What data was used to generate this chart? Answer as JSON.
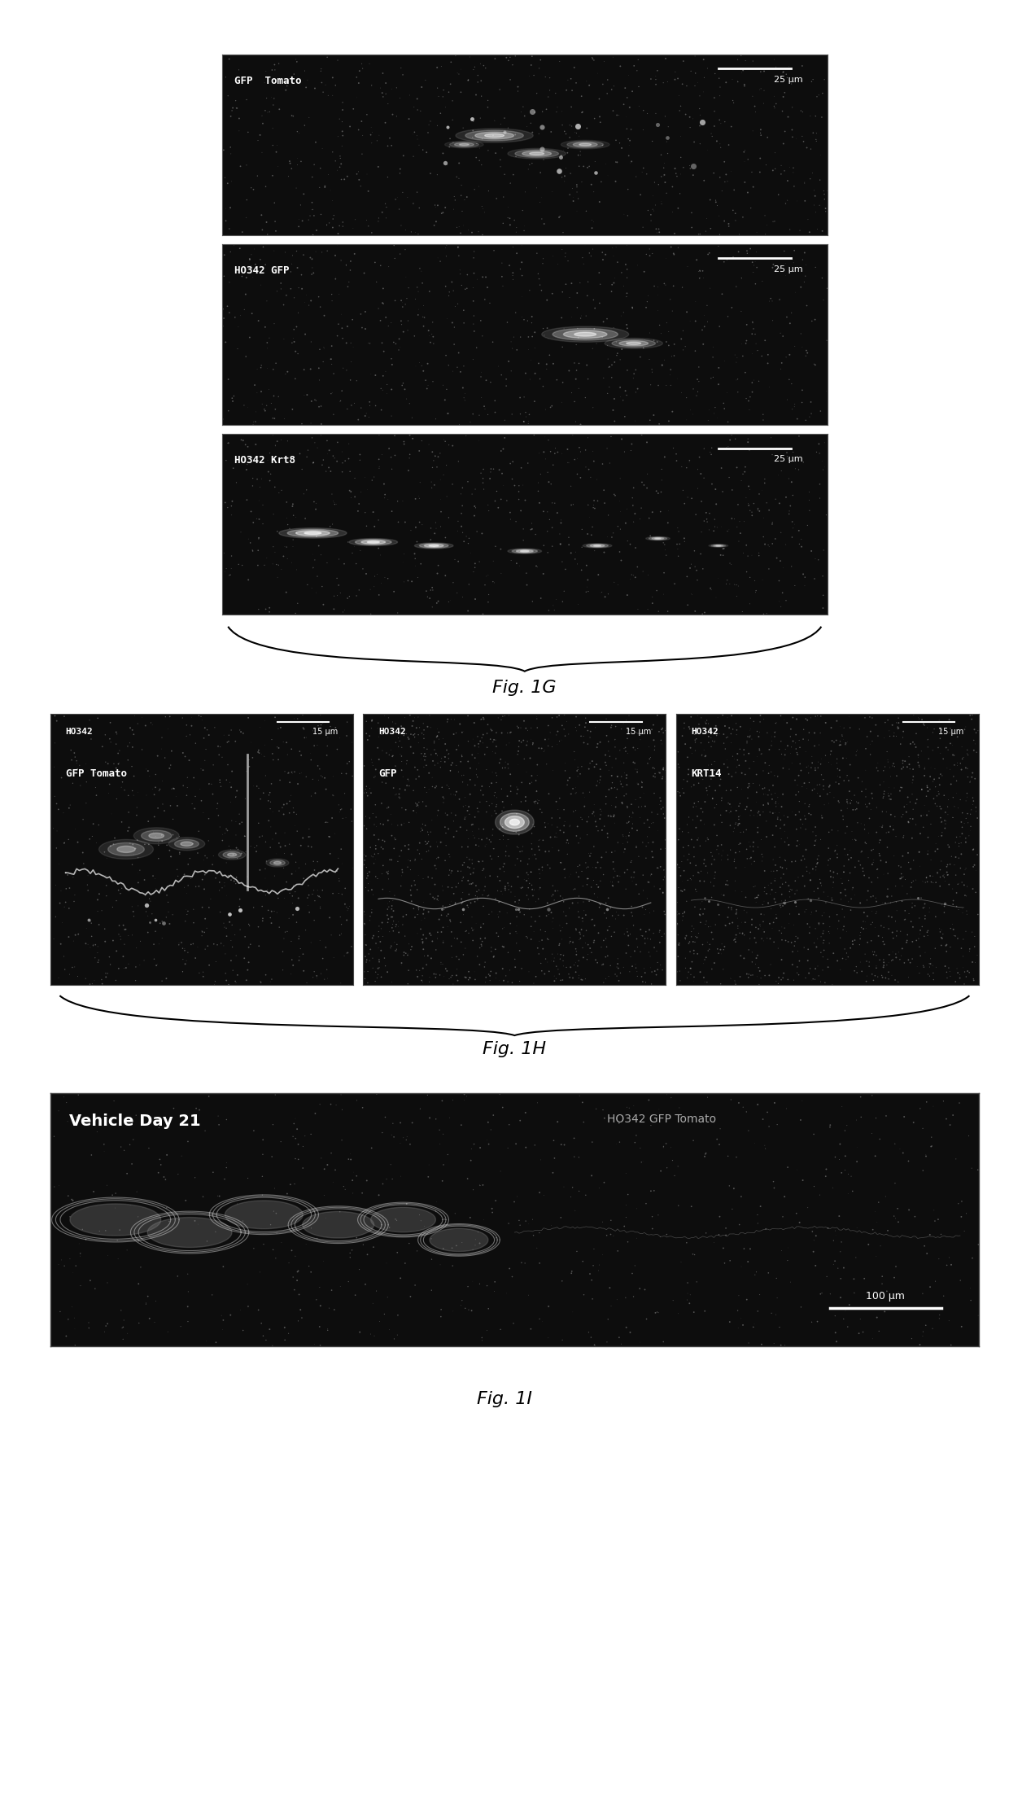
{
  "fig_width": 12.4,
  "fig_height": 22.2,
  "bg_color": "#ffffff",
  "panel_G": {
    "label": "Fig. 1G",
    "rows": [
      {
        "label_top": "GFP  Tomato",
        "scale": "25 μm",
        "bg": "#1a1a1a"
      },
      {
        "label_top": "HO342 GFP",
        "scale": "25 μm",
        "bg": "#1a1a1a"
      },
      {
        "label_top": "HO342 Krt8",
        "scale": "25 μm",
        "bg": "#1a1a1a"
      }
    ]
  },
  "panel_H": {
    "label": "Fig. 1H",
    "cols": [
      {
        "label_line1": "HO342",
        "label_line2": "GFP Tomato",
        "scale": "15 μm",
        "bg": "#1a1a1a"
      },
      {
        "label_line1": "HO342",
        "label_line2": "GFP",
        "scale": "15 μm",
        "bg": "#1a1a1a"
      },
      {
        "label_line1": "HO342",
        "label_line2": "KRT14",
        "scale": "15 μm",
        "bg": "#1a1a1a"
      }
    ]
  },
  "panel_I": {
    "label": "Fig. 1I",
    "label_left": "Vehicle Day 21",
    "label_right": "HO342 GFP Tomato",
    "scale": "100 μm",
    "bg": "#1a1a1a"
  },
  "label_color": "#c8c8c8",
  "white": "#ffffff",
  "italic_label_color": "#000000"
}
